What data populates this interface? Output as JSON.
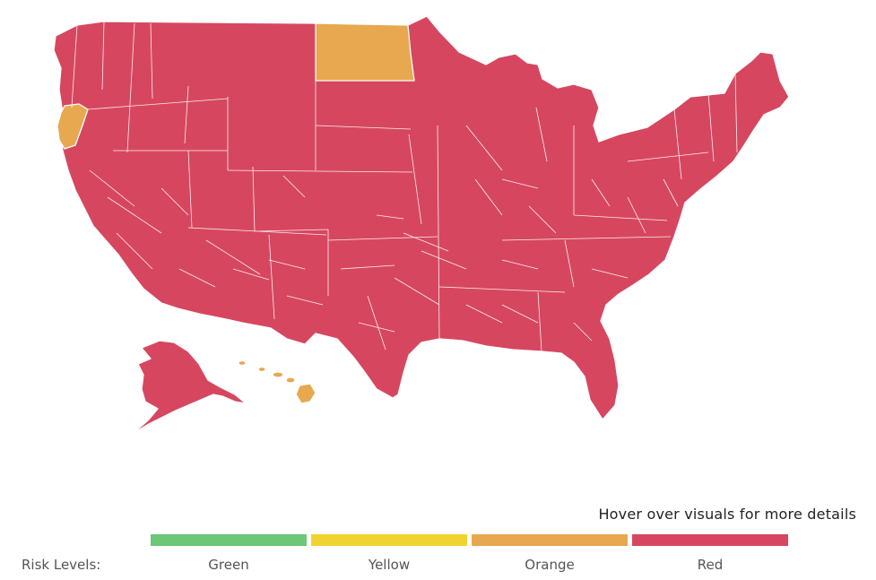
{
  "map": {
    "regions": [
      {
        "id": "contiguous-us",
        "risk": "Red",
        "color": "#d6475f"
      },
      {
        "id": "alaska",
        "risk": "Red",
        "color": "#d6475f"
      },
      {
        "id": "north-dakota",
        "risk": "Orange",
        "color": "#e8a84f"
      },
      {
        "id": "oregon-southwest",
        "risk": "Orange",
        "color": "#e8a84f"
      },
      {
        "id": "hawaii",
        "risk": "Orange",
        "color": "#e8a84f"
      }
    ]
  },
  "hint_text": "Hover over visuals for more details",
  "legend": {
    "title": "Risk Levels:",
    "items": [
      {
        "label": "Green",
        "color": "#6cc777"
      },
      {
        "label": "Yellow",
        "color": "#f0d330"
      },
      {
        "label": "Orange",
        "color": "#e8a84f"
      },
      {
        "label": "Red",
        "color": "#d6475f"
      }
    ]
  }
}
